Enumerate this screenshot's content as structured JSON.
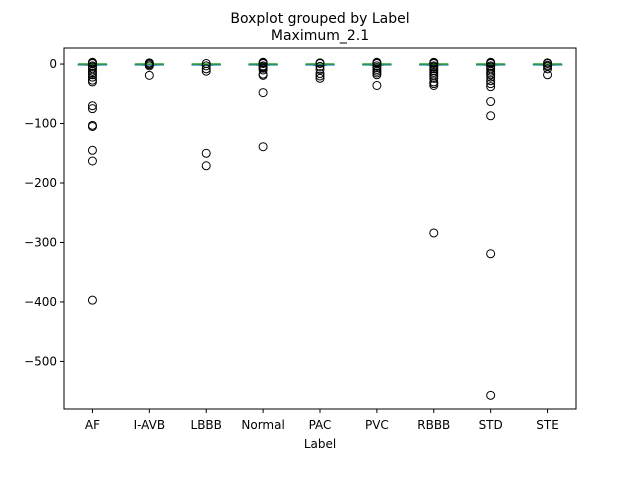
{
  "chart_data": {
    "type": "boxplot",
    "suptitle": "Boxplot grouped by Label",
    "title": "Maximum_2.1",
    "xlabel": "Label",
    "ylabel": "",
    "ylim": [
      -580,
      27
    ],
    "yticks": [
      0,
      -100,
      -200,
      -300,
      -400,
      -500
    ],
    "ytick_labels": [
      "0",
      "−100",
      "−200",
      "−300",
      "−400",
      "−500"
    ],
    "categories": [
      "AF",
      "I-AVB",
      "LBBB",
      "Normal",
      "PAC",
      "PVC",
      "RBBB",
      "STD",
      "STE"
    ],
    "boxes": [
      {
        "label": "AF",
        "q1": -1,
        "median": 0,
        "q3": 0,
        "whisker_low": -2,
        "whisker_high": 0,
        "outliers": [
          3,
          2,
          1,
          -3,
          -5,
          -8,
          -12,
          -15,
          -18,
          -22,
          -27,
          -30,
          -70,
          -75,
          -103,
          -105,
          -145,
          -163,
          -397
        ]
      },
      {
        "label": "I-AVB",
        "q1": -1,
        "median": 0,
        "q3": 0,
        "whisker_low": -2,
        "whisker_high": 0,
        "outliers": [
          2,
          1,
          -1,
          -3,
          -19
        ]
      },
      {
        "label": "LBBB",
        "q1": -1,
        "median": 0,
        "q3": 0,
        "whisker_low": -2,
        "whisker_high": 0,
        "outliers": [
          1,
          -3,
          -8,
          -12,
          -150,
          -171
        ]
      },
      {
        "label": "Normal",
        "q1": -1,
        "median": 0,
        "q3": 0,
        "whisker_low": -2,
        "whisker_high": 0,
        "outliers": [
          3,
          2,
          1,
          -3,
          -5,
          -7,
          -10,
          -17,
          -19,
          -48,
          -139
        ]
      },
      {
        "label": "PAC",
        "q1": -1,
        "median": 0,
        "q3": 0,
        "whisker_low": -2,
        "whisker_high": 0,
        "outliers": [
          2,
          1,
          -4,
          -9,
          -16,
          -20,
          -24
        ]
      },
      {
        "label": "PVC",
        "q1": -1,
        "median": 0,
        "q3": 0,
        "whisker_low": -2,
        "whisker_high": 0,
        "outliers": [
          3,
          2,
          1,
          -3,
          -6,
          -9,
          -12,
          -15,
          -18,
          -36
        ]
      },
      {
        "label": "RBBB",
        "q1": -1,
        "median": 0,
        "q3": 0,
        "whisker_low": -2,
        "whisker_high": 0,
        "outliers": [
          3,
          2,
          1,
          -3,
          -5,
          -8,
          -11,
          -14,
          -17,
          -20,
          -24,
          -30,
          -33,
          -36,
          -284
        ]
      },
      {
        "label": "STD",
        "q1": -1,
        "median": 0,
        "q3": 0,
        "whisker_low": -2,
        "whisker_high": 0,
        "outliers": [
          3,
          2,
          1,
          -3,
          -5,
          -8,
          -12,
          -15,
          -18,
          -22,
          -28,
          -33,
          -38,
          -63,
          -87,
          -319,
          -557
        ]
      },
      {
        "label": "STE",
        "q1": -1,
        "median": 0,
        "q3": 0,
        "whisker_low": -2,
        "whisker_high": 0,
        "outliers": [
          2,
          1,
          -2,
          -4,
          -8,
          -18
        ]
      }
    ],
    "colors": {
      "box": "#1f77b4",
      "whisker": "#1f77b4",
      "median": "#2ca02c",
      "outlier_edge": "#000000",
      "axes": "#000000",
      "background": "#ffffff"
    }
  }
}
